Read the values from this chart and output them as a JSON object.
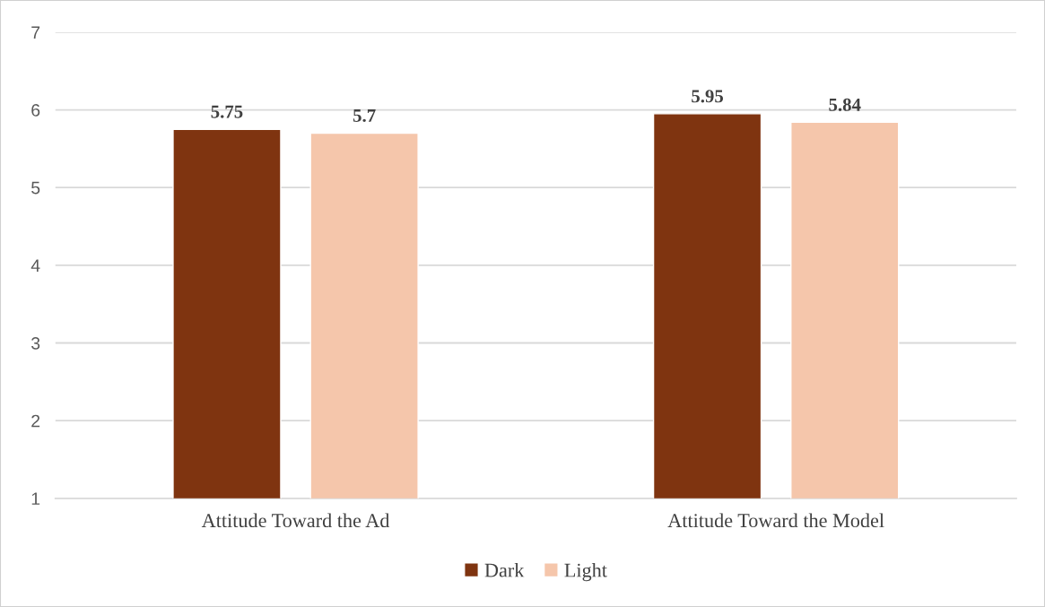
{
  "chart_data": {
    "type": "bar",
    "categories": [
      "Attitude Toward the Ad",
      "Attitude Toward the Model"
    ],
    "series": [
      {
        "name": "Dark",
        "color": "#7f3410",
        "values": [
          5.75,
          5.95
        ]
      },
      {
        "name": "Light",
        "color": "#f5c6ab",
        "values": [
          5.7,
          5.84
        ]
      }
    ],
    "ylim": [
      1,
      7
    ],
    "yticks": [
      1,
      2,
      3,
      4,
      5,
      6,
      7
    ],
    "grid": "y",
    "legend": "bottom",
    "data_labels": true
  }
}
